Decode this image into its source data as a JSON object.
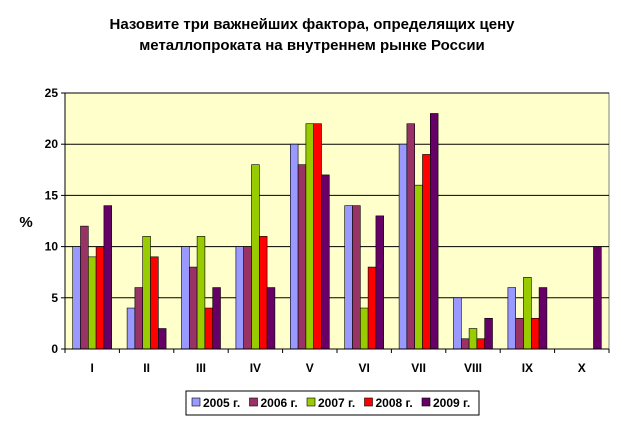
{
  "chart_data": {
    "type": "bar",
    "title_lines": [
      "Назовите три важнейших фактора, определящих цену",
      "металлопроката на внутреннем рынке России"
    ],
    "ylabel": "%",
    "xlabel": "",
    "ylim": [
      0,
      25
    ],
    "yticks": [
      0,
      5,
      10,
      15,
      20,
      25
    ],
    "grid": true,
    "legend_position": "bottom",
    "categories": [
      "I",
      "II",
      "III",
      "IV",
      "V",
      "VI",
      "VII",
      "VIII",
      "IX",
      "X"
    ],
    "series": [
      {
        "name": "2005 г.",
        "color": "#9999ff",
        "values": [
          10,
          4,
          10,
          10,
          20,
          14,
          20,
          5,
          6,
          0
        ]
      },
      {
        "name": "2006 г.",
        "color": "#993366",
        "values": [
          12,
          6,
          8,
          10,
          18,
          14,
          22,
          1,
          3,
          0
        ]
      },
      {
        "name": "2007 г.",
        "color": "#99cc00",
        "values": [
          9,
          11,
          11,
          18,
          22,
          4,
          16,
          2,
          7,
          0
        ]
      },
      {
        "name": "2008 г.",
        "color": "#ff0000",
        "values": [
          10,
          9,
          4,
          11,
          22,
          8,
          19,
          1,
          3,
          0
        ]
      },
      {
        "name": "2009 г.",
        "color": "#660066",
        "values": [
          14,
          2,
          6,
          6,
          17,
          13,
          23,
          3,
          6,
          10
        ]
      }
    ],
    "plot_background": "#ffffcc"
  }
}
